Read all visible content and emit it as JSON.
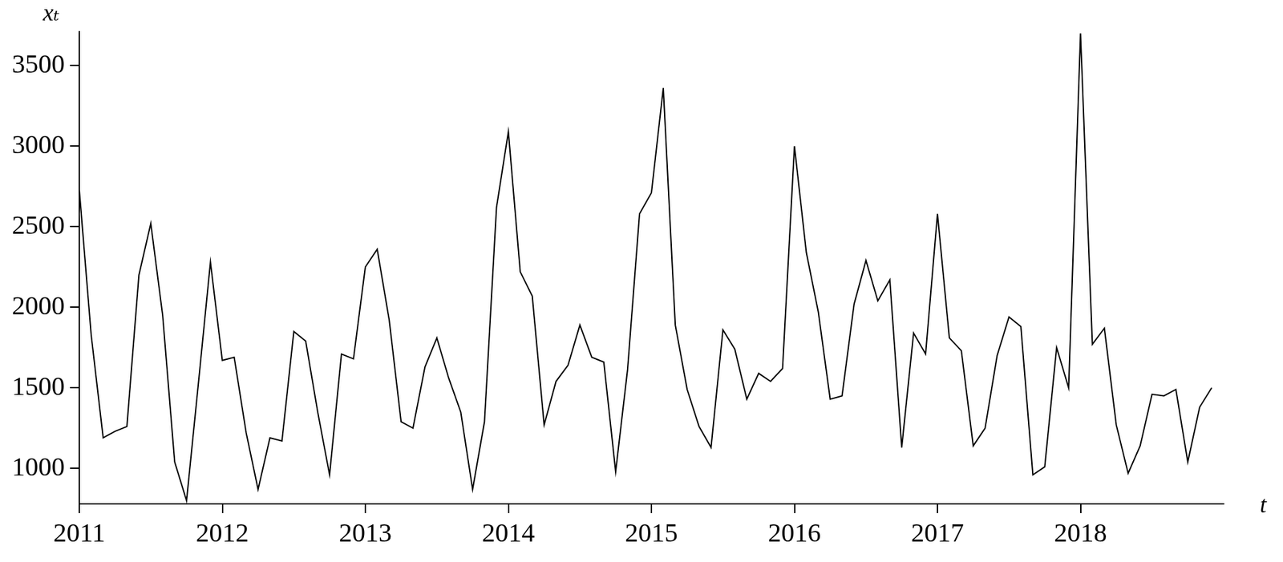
{
  "chart_data": {
    "type": "line",
    "x_label": "t",
    "y_label": "xₜ",
    "x": [
      2011,
      2011.083,
      2011.167,
      2011.25,
      2011.333,
      2011.417,
      2011.5,
      2011.583,
      2011.667,
      2011.75,
      2011.833,
      2011.917,
      2012,
      2012.083,
      2012.167,
      2012.25,
      2012.333,
      2012.417,
      2012.5,
      2012.583,
      2012.667,
      2012.75,
      2012.833,
      2012.917,
      2013,
      2013.083,
      2013.167,
      2013.25,
      2013.333,
      2013.417,
      2013.5,
      2013.583,
      2013.667,
      2013.75,
      2013.833,
      2013.917,
      2014,
      2014.083,
      2014.167,
      2014.25,
      2014.333,
      2014.417,
      2014.5,
      2014.583,
      2014.667,
      2014.75,
      2014.833,
      2014.917,
      2015,
      2015.083,
      2015.167,
      2015.25,
      2015.333,
      2015.417,
      2015.5,
      2015.583,
      2015.667,
      2015.75,
      2015.833,
      2015.917,
      2016,
      2016.083,
      2016.167,
      2016.25,
      2016.333,
      2016.417,
      2016.5,
      2016.583,
      2016.667,
      2016.75,
      2016.833,
      2016.917,
      2017,
      2017.083,
      2017.167,
      2017.25,
      2017.333,
      2017.417,
      2017.5,
      2017.583,
      2017.667,
      2017.75,
      2017.833,
      2017.917,
      2018,
      2018.083,
      2018.167,
      2018.25,
      2018.333,
      2018.417,
      2018.5,
      2018.583,
      2018.667,
      2018.75,
      2018.833,
      2018.917
    ],
    "values": [
      2730,
      1830,
      1190,
      1230,
      1260,
      2200,
      2520,
      1950,
      1040,
      800,
      1530,
      2280,
      1670,
      1690,
      1220,
      870,
      1190,
      1170,
      1850,
      1790,
      1350,
      960,
      1710,
      1680,
      2250,
      2360,
      1920,
      1290,
      1250,
      1630,
      1810,
      1560,
      1350,
      870,
      1290,
      2620,
      3090,
      2220,
      2070,
      1270,
      1540,
      1640,
      1890,
      1690,
      1660,
      980,
      1610,
      2580,
      2710,
      3360,
      1890,
      1490,
      1260,
      1130,
      1860,
      1740,
      1430,
      1590,
      1540,
      1620,
      3000,
      2340,
      1970,
      1430,
      1450,
      2020,
      2290,
      2040,
      2170,
      1130,
      1840,
      1710,
      2580,
      1810,
      1730,
      1140,
      1250,
      1700,
      1940,
      1880,
      960,
      1010,
      1750,
      1500,
      3700,
      1770,
      1870,
      1270,
      970,
      1140,
      1460,
      1450,
      1490,
      1040,
      1380,
      1500
    ],
    "color": "#000000",
    "xlim": [
      2011,
      2019
    ],
    "xticks": [
      2011,
      2012,
      2013,
      2014,
      2015,
      2016,
      2017,
      2018
    ],
    "ylim": [
      780,
      3710
    ],
    "yticks": [
      1000,
      1500,
      2000,
      2500,
      3000,
      3500
    ],
    "grid": false
  }
}
